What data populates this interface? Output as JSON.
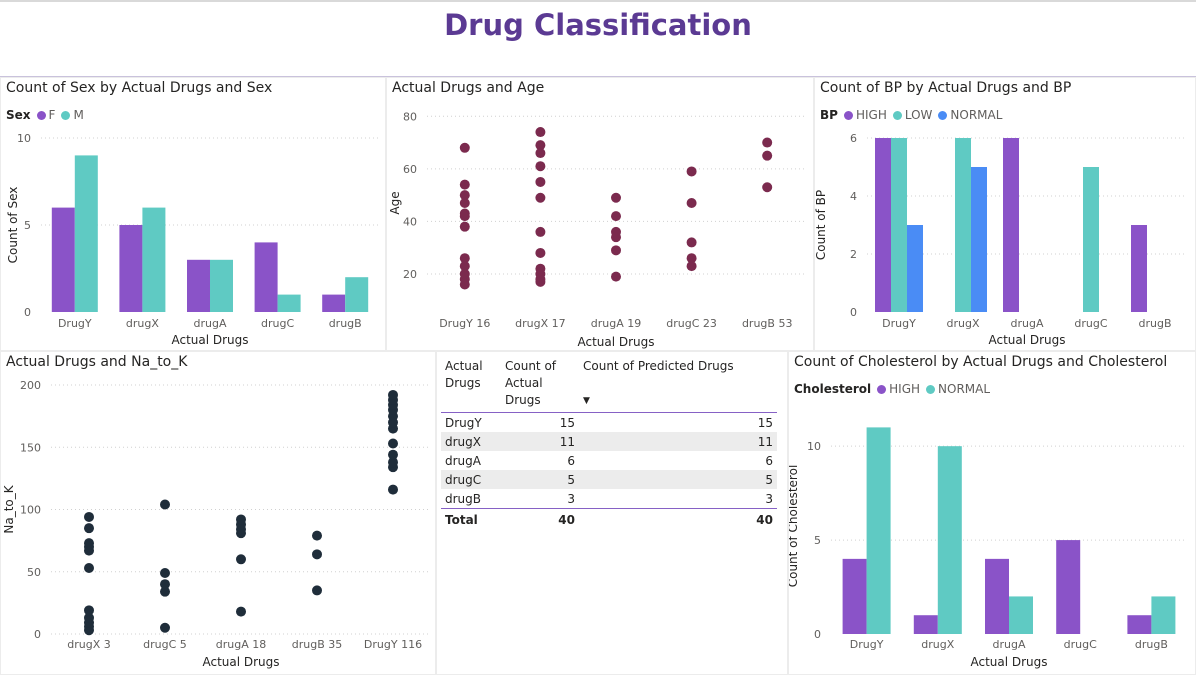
{
  "page": {
    "title": "Drug Classification"
  },
  "colors": {
    "purple": "#8a53c8",
    "teal": "#5fcac3",
    "blue": "#4a8cf5",
    "maroon": "#7b2a4e",
    "navy": "#1f2d3a"
  },
  "panels": {
    "sex": {
      "title": "Count of Sex by Actual Drugs and Sex",
      "legend_title": "Sex"
    },
    "age": {
      "title": "Actual Drugs and Age"
    },
    "bp": {
      "title": "Count of BP by Actual Drugs and BP",
      "legend_title": "BP"
    },
    "nak": {
      "title": "Actual Drugs and Na_to_K"
    },
    "chol": {
      "title": "Count of Cholesterol by Actual Drugs and Cholesterol",
      "legend_title": "Cholesterol"
    }
  },
  "table": {
    "headers": [
      "Actual Drugs",
      "Count of Actual Drugs",
      "Count of Predicted Drugs"
    ],
    "rows": [
      [
        "DrugY",
        "15",
        "15"
      ],
      [
        "drugX",
        "11",
        "11"
      ],
      [
        "drugA",
        "6",
        "6"
      ],
      [
        "drugC",
        "5",
        "5"
      ],
      [
        "drugB",
        "3",
        "3"
      ]
    ],
    "total": [
      "Total",
      "40",
      "40"
    ]
  },
  "chart_data": [
    {
      "id": "sex",
      "type": "bar",
      "title": "Count of Sex by Actual Drugs and Sex",
      "categories": [
        "DrugY",
        "drugX",
        "drugA",
        "drugC",
        "drugB"
      ],
      "series": [
        {
          "name": "F",
          "values": [
            6,
            5,
            3,
            4,
            1
          ],
          "color": "#8a53c8"
        },
        {
          "name": "M",
          "values": [
            9,
            6,
            3,
            1,
            2
          ],
          "color": "#5fcac3"
        }
      ],
      "xlabel": "Actual Drugs",
      "ylabel": "Count of Sex",
      "ylim": [
        0,
        10
      ],
      "yticks": [
        0,
        5,
        10
      ],
      "legend_title": "Sex",
      "legend": "top-left",
      "grid": true
    },
    {
      "id": "age",
      "type": "scatter",
      "title": "Actual Drugs and Age",
      "categories": [
        "DrugY 16",
        "drugX 17",
        "drugA 19",
        "drugC 23",
        "drugB 53"
      ],
      "series": [
        {
          "values": [
            [
              16,
              18,
              20,
              23,
              26,
              38,
              42,
              43,
              47,
              50,
              54,
              68
            ],
            [
              17,
              18,
              20,
              22,
              28,
              36,
              49,
              55,
              61,
              66,
              69,
              74
            ],
            [
              19,
              29,
              34,
              36,
              42,
              49
            ],
            [
              23,
              26,
              32,
              47,
              59
            ],
            [
              53,
              65,
              70
            ]
          ],
          "color": "#7b2a4e"
        }
      ],
      "xlabel": "Actual Drugs",
      "ylabel": "Age",
      "ylim": [
        12,
        82
      ],
      "yticks": [
        20,
        40,
        60,
        80
      ],
      "grid": true
    },
    {
      "id": "bp",
      "type": "bar",
      "title": "Count of BP by Actual Drugs and BP",
      "categories": [
        "DrugY",
        "drugX",
        "drugA",
        "drugC",
        "drugB"
      ],
      "series": [
        {
          "name": "HIGH",
          "values": [
            6,
            null,
            6,
            null,
            3
          ],
          "color": "#8a53c8"
        },
        {
          "name": "LOW",
          "values": [
            6,
            6,
            null,
            5,
            null
          ],
          "color": "#5fcac3"
        },
        {
          "name": "NORMAL",
          "values": [
            3,
            5,
            null,
            null,
            null
          ],
          "color": "#4a8cf5"
        }
      ],
      "xlabel": "Actual Drugs",
      "ylabel": "Count of BP",
      "ylim": [
        0,
        6
      ],
      "yticks": [
        0,
        2,
        4,
        6
      ],
      "legend_title": "BP",
      "legend": "top-left",
      "grid": true
    },
    {
      "id": "nak",
      "type": "scatter",
      "title": "Actual Drugs and Na_to_K",
      "categories": [
        "drugX 3",
        "drugC 5",
        "drugA 18",
        "drugB 35",
        "DrugY 116"
      ],
      "series": [
        {
          "values": [
            [
              3,
              6,
              9,
              13,
              19,
              53,
              67,
              70,
              73,
              85,
              94
            ],
            [
              5,
              34,
              40,
              49,
              104
            ],
            [
              18,
              60,
              81,
              84,
              88,
              92
            ],
            [
              35,
              64,
              79
            ],
            [
              116,
              134,
              138,
              144,
              153,
              165,
              170,
              175,
              180,
              184,
              188,
              192
            ]
          ],
          "color": "#1f2d3a"
        }
      ],
      "xlabel": "Actual Drugs",
      "ylabel": "Na_to_K",
      "ylim": [
        0,
        200
      ],
      "yticks": [
        0,
        50,
        100,
        150,
        200
      ],
      "grid": true
    },
    {
      "id": "chol",
      "type": "bar",
      "title": "Count of Cholesterol by Actual Drugs and Cholesterol",
      "categories": [
        "DrugY",
        "drugX",
        "drugA",
        "drugC",
        "drugB"
      ],
      "series": [
        {
          "name": "HIGH",
          "values": [
            4,
            1,
            4,
            5,
            1
          ],
          "color": "#8a53c8"
        },
        {
          "name": "NORMAL",
          "values": [
            11,
            10,
            2,
            null,
            2
          ],
          "color": "#5fcac3"
        }
      ],
      "xlabel": "Actual Drugs",
      "ylabel": "Count of Cholesterol",
      "ylim": [
        0,
        11.5
      ],
      "yticks": [
        0,
        5,
        10
      ],
      "legend_title": "Cholesterol",
      "legend": "top-left",
      "grid": true
    }
  ]
}
